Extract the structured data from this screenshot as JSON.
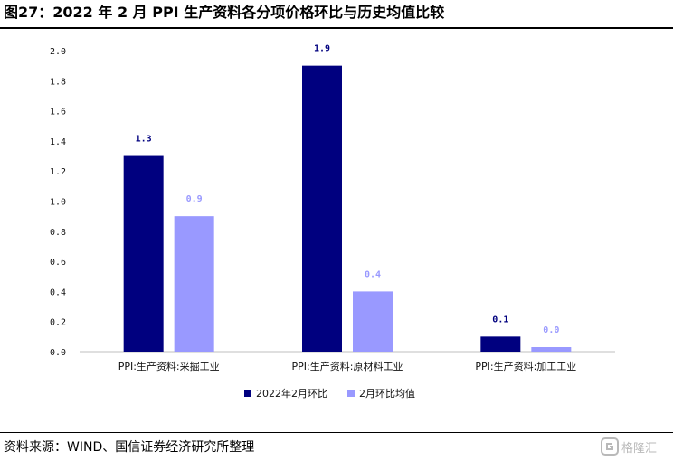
{
  "title": "图27：2022 年 2 月 PPI 生产资料各分项价格环比与历史均值比较",
  "source": "资料来源：WIND、国信证券经济研究所整理",
  "watermark": "格隆汇",
  "chart_data": {
    "type": "bar",
    "categories": [
      "PPI:生产资料:采掘工业",
      "PPI:生产资料:原材料工业",
      "PPI:生产资料:加工工业"
    ],
    "series": [
      {
        "name": "2022年2月环比",
        "values": [
          1.3,
          1.9,
          0.1
        ],
        "color": "#00007f",
        "labels": [
          "1.3",
          "1.9",
          "0.1"
        ]
      },
      {
        "name": "2月环比均值",
        "values": [
          0.9,
          0.4,
          0.03
        ],
        "color": "#9999ff",
        "labels": [
          "0.9",
          "0.4",
          "0.0"
        ]
      }
    ],
    "ylim": [
      0,
      2.0
    ],
    "yticks": [
      "0.0",
      "0.2",
      "0.4",
      "0.6",
      "0.8",
      "1.0",
      "1.2",
      "1.4",
      "1.6",
      "1.8",
      "2.0"
    ],
    "grid": false,
    "legend": "bottom-center"
  }
}
